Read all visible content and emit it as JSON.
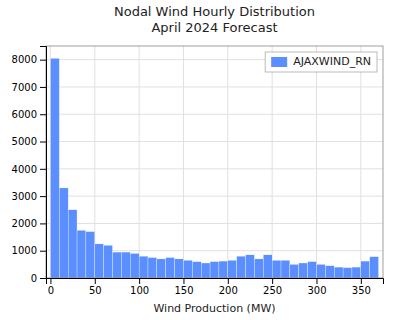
{
  "chart_data": {
    "type": "histogram",
    "title": "Nodal Wind Hourly Distribution\nApril 2024 Forecast",
    "x_label": "Wind Production (MW)",
    "bins": [
      0,
      10,
      20,
      30,
      40,
      50,
      60,
      70,
      80,
      90,
      100,
      110,
      120,
      130,
      140,
      150,
      160,
      170,
      180,
      190,
      200,
      210,
      220,
      230,
      240,
      250,
      260,
      270,
      280,
      290,
      300,
      310,
      320,
      330,
      340,
      350,
      360,
      370
    ],
    "series": [
      {
        "name": "AJAXWIND_RN",
        "color": "#5b8fff",
        "values": [
          8050,
          3300,
          2500,
          1750,
          1700,
          1250,
          1200,
          950,
          950,
          900,
          800,
          750,
          700,
          750,
          700,
          650,
          600,
          550,
          600,
          620,
          650,
          800,
          850,
          700,
          850,
          650,
          650,
          500,
          550,
          600,
          500,
          450,
          400,
          380,
          400,
          620,
          780
        ]
      }
    ],
    "xlim": [
      -5,
      375
    ],
    "xticks": [
      0,
      50,
      100,
      150,
      200,
      250,
      300,
      350
    ],
    "ylim": [
      0,
      8500
    ],
    "yticks": [
      0,
      1000,
      2000,
      3000,
      4000,
      5000,
      6000,
      7000,
      8000
    ],
    "grid": true,
    "legend": "upper right"
  }
}
